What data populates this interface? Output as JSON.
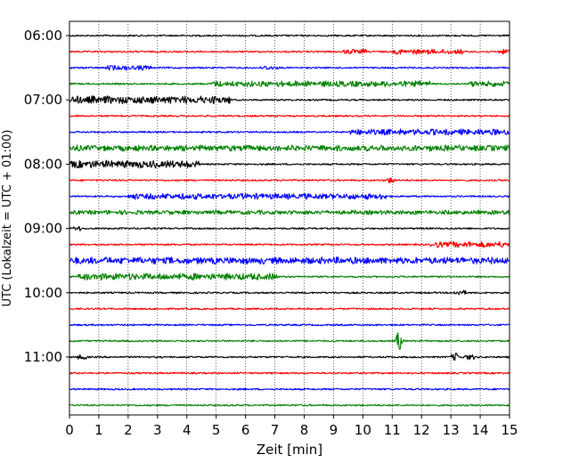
{
  "chart_data": {
    "type": "line",
    "title": "",
    "xlabel": "Zeit  [min]",
    "ylabel": "UTC (Lokalzeit = UTC + 01:00)",
    "xlim": [
      0,
      15
    ],
    "x_ticks": [
      0,
      1,
      2,
      3,
      4,
      5,
      6,
      7,
      8,
      9,
      10,
      11,
      12,
      13,
      14,
      15
    ],
    "y_tick_labels": [
      "06:00",
      "07:00",
      "08:00",
      "09:00",
      "10:00",
      "11:00"
    ],
    "grid": "vertical dotted at each minute",
    "trace_colors": [
      "#000000",
      "#ff0000",
      "#0000ff",
      "#008000"
    ],
    "rows": [
      {
        "start": "06:00",
        "color": "#000000",
        "events": []
      },
      {
        "start": "06:15",
        "color": "#ff0000",
        "events": [
          {
            "t": 9.3,
            "dur": 0.8,
            "amp": 3
          },
          {
            "t": 11.0,
            "dur": 2.4,
            "amp": 3
          },
          {
            "t": 14.6,
            "dur": 0.4,
            "amp": 3
          }
        ]
      },
      {
        "start": "06:30",
        "color": "#0000ff",
        "events": [
          {
            "t": 1.2,
            "dur": 1.6,
            "amp": 3
          },
          {
            "t": 6.5,
            "dur": 0.6,
            "amp": 2.5
          }
        ]
      },
      {
        "start": "06:45",
        "color": "#008000",
        "events": [
          {
            "t": 4.8,
            "dur": 7.5,
            "amp": 3.5
          },
          {
            "t": 13.6,
            "dur": 1.4,
            "amp": 3.5
          }
        ]
      },
      {
        "start": "07:00",
        "color": "#000000",
        "events": [
          {
            "t": 0.0,
            "dur": 5.5,
            "amp": 4.5
          }
        ]
      },
      {
        "start": "07:15",
        "color": "#ff0000",
        "events": []
      },
      {
        "start": "07:30",
        "color": "#0000ff",
        "events": [
          {
            "t": 9.5,
            "dur": 5.5,
            "amp": 3.5
          }
        ]
      },
      {
        "start": "07:45",
        "color": "#008000",
        "events": [
          {
            "t": 0.0,
            "dur": 15,
            "amp": 3.5
          }
        ]
      },
      {
        "start": "08:00",
        "color": "#000000",
        "events": [
          {
            "t": 0.0,
            "dur": 4.4,
            "amp": 4.5
          }
        ]
      },
      {
        "start": "08:15",
        "color": "#ff0000",
        "events": [
          {
            "t": 10.8,
            "dur": 0.3,
            "amp": 4
          }
        ]
      },
      {
        "start": "08:30",
        "color": "#0000ff",
        "events": [
          {
            "t": 2.0,
            "dur": 8.8,
            "amp": 3.5
          }
        ]
      },
      {
        "start": "08:45",
        "color": "#008000",
        "events": [
          {
            "t": 0.0,
            "dur": 15,
            "amp": 2.5
          }
        ]
      },
      {
        "start": "09:00",
        "color": "#000000",
        "events": [
          {
            "t": 0.1,
            "dur": 0.3,
            "amp": 3
          }
        ]
      },
      {
        "start": "09:15",
        "color": "#ff0000",
        "events": [
          {
            "t": 12.3,
            "dur": 2.7,
            "amp": 3.5
          }
        ]
      },
      {
        "start": "09:30",
        "color": "#0000ff",
        "events": [
          {
            "t": 0.0,
            "dur": 15,
            "amp": 4
          }
        ]
      },
      {
        "start": "09:45",
        "color": "#008000",
        "events": [
          {
            "t": 0.3,
            "dur": 6.8,
            "amp": 4
          }
        ]
      },
      {
        "start": "10:00",
        "color": "#000000",
        "events": [
          {
            "t": 13.1,
            "dur": 0.4,
            "amp": 3
          }
        ]
      },
      {
        "start": "10:15",
        "color": "#ff0000",
        "events": []
      },
      {
        "start": "10:30",
        "color": "#0000ff",
        "events": []
      },
      {
        "start": "10:45",
        "color": "#008000",
        "events": [
          {
            "t": 11.1,
            "dur": 0.4,
            "amp": 13,
            "spike": true
          }
        ]
      },
      {
        "start": "11:00",
        "color": "#000000",
        "events": [
          {
            "t": 0.2,
            "dur": 0.4,
            "amp": 3
          },
          {
            "t": 13.0,
            "dur": 0.3,
            "amp": 5
          },
          {
            "t": 13.4,
            "dur": 0.4,
            "amp": 3
          }
        ]
      },
      {
        "start": "11:15",
        "color": "#ff0000",
        "events": []
      },
      {
        "start": "11:30",
        "color": "#0000ff",
        "events": []
      },
      {
        "start": "11:45",
        "color": "#008000",
        "events": []
      }
    ]
  }
}
